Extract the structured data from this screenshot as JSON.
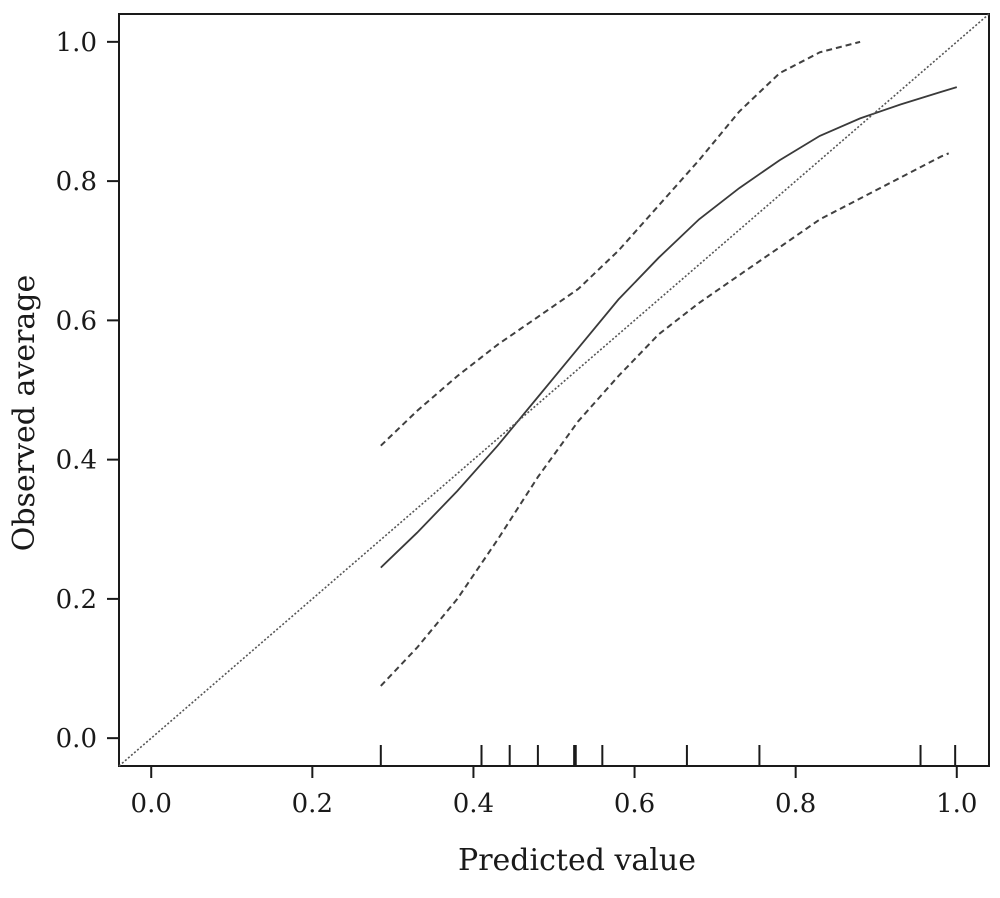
{
  "chart_data": {
    "type": "line",
    "title": "",
    "xlabel": "Predicted value",
    "ylabel": "Observed average",
    "xlim": [
      -0.04,
      1.04
    ],
    "ylim": [
      -0.04,
      1.04
    ],
    "x_ticks": [
      0.0,
      0.2,
      0.4,
      0.6,
      0.8,
      1.0
    ],
    "x_tick_labels": [
      "0.0",
      "0.2",
      "0.4",
      "0.6",
      "0.8",
      "1.0"
    ],
    "y_ticks": [
      0.0,
      0.2,
      0.4,
      0.6,
      0.8,
      1.0
    ],
    "y_tick_labels": [
      "0.0",
      "0.2",
      "0.4",
      "0.6",
      "0.8",
      "1.0"
    ],
    "grid": false,
    "legend": "none",
    "series": [
      {
        "style": "solid",
        "x": [
          0.285,
          0.33,
          0.38,
          0.43,
          0.48,
          0.53,
          0.58,
          0.63,
          0.68,
          0.73,
          0.78,
          0.83,
          0.88,
          0.93,
          0.98,
          1.0
        ],
        "y": [
          0.245,
          0.295,
          0.355,
          0.42,
          0.49,
          0.56,
          0.63,
          0.69,
          0.745,
          0.79,
          0.83,
          0.865,
          0.89,
          0.91,
          0.928,
          0.935
        ]
      },
      {
        "style": "dashed",
        "x": [
          0.285,
          0.33,
          0.38,
          0.43,
          0.48,
          0.53,
          0.58,
          0.63,
          0.68,
          0.73,
          0.78,
          0.83,
          0.88
        ],
        "y": [
          0.42,
          0.47,
          0.52,
          0.565,
          0.605,
          0.645,
          0.7,
          0.765,
          0.83,
          0.9,
          0.955,
          0.985,
          1.0
        ]
      },
      {
        "style": "dashed",
        "x": [
          0.285,
          0.33,
          0.38,
          0.43,
          0.48,
          0.53,
          0.58,
          0.63,
          0.68,
          0.73,
          0.78,
          0.83,
          0.88,
          0.93,
          0.98,
          0.99
        ],
        "y": [
          0.075,
          0.13,
          0.2,
          0.285,
          0.375,
          0.455,
          0.52,
          0.58,
          0.625,
          0.665,
          0.705,
          0.745,
          0.775,
          0.805,
          0.835,
          0.84
        ]
      },
      {
        "style": "dotted",
        "x": [
          -0.04,
          1.04
        ],
        "y": [
          -0.04,
          1.04
        ]
      }
    ],
    "rug": [
      0.285,
      0.41,
      0.445,
      0.48,
      0.525,
      0.527,
      0.56,
      0.665,
      0.755,
      0.955,
      0.998
    ]
  }
}
